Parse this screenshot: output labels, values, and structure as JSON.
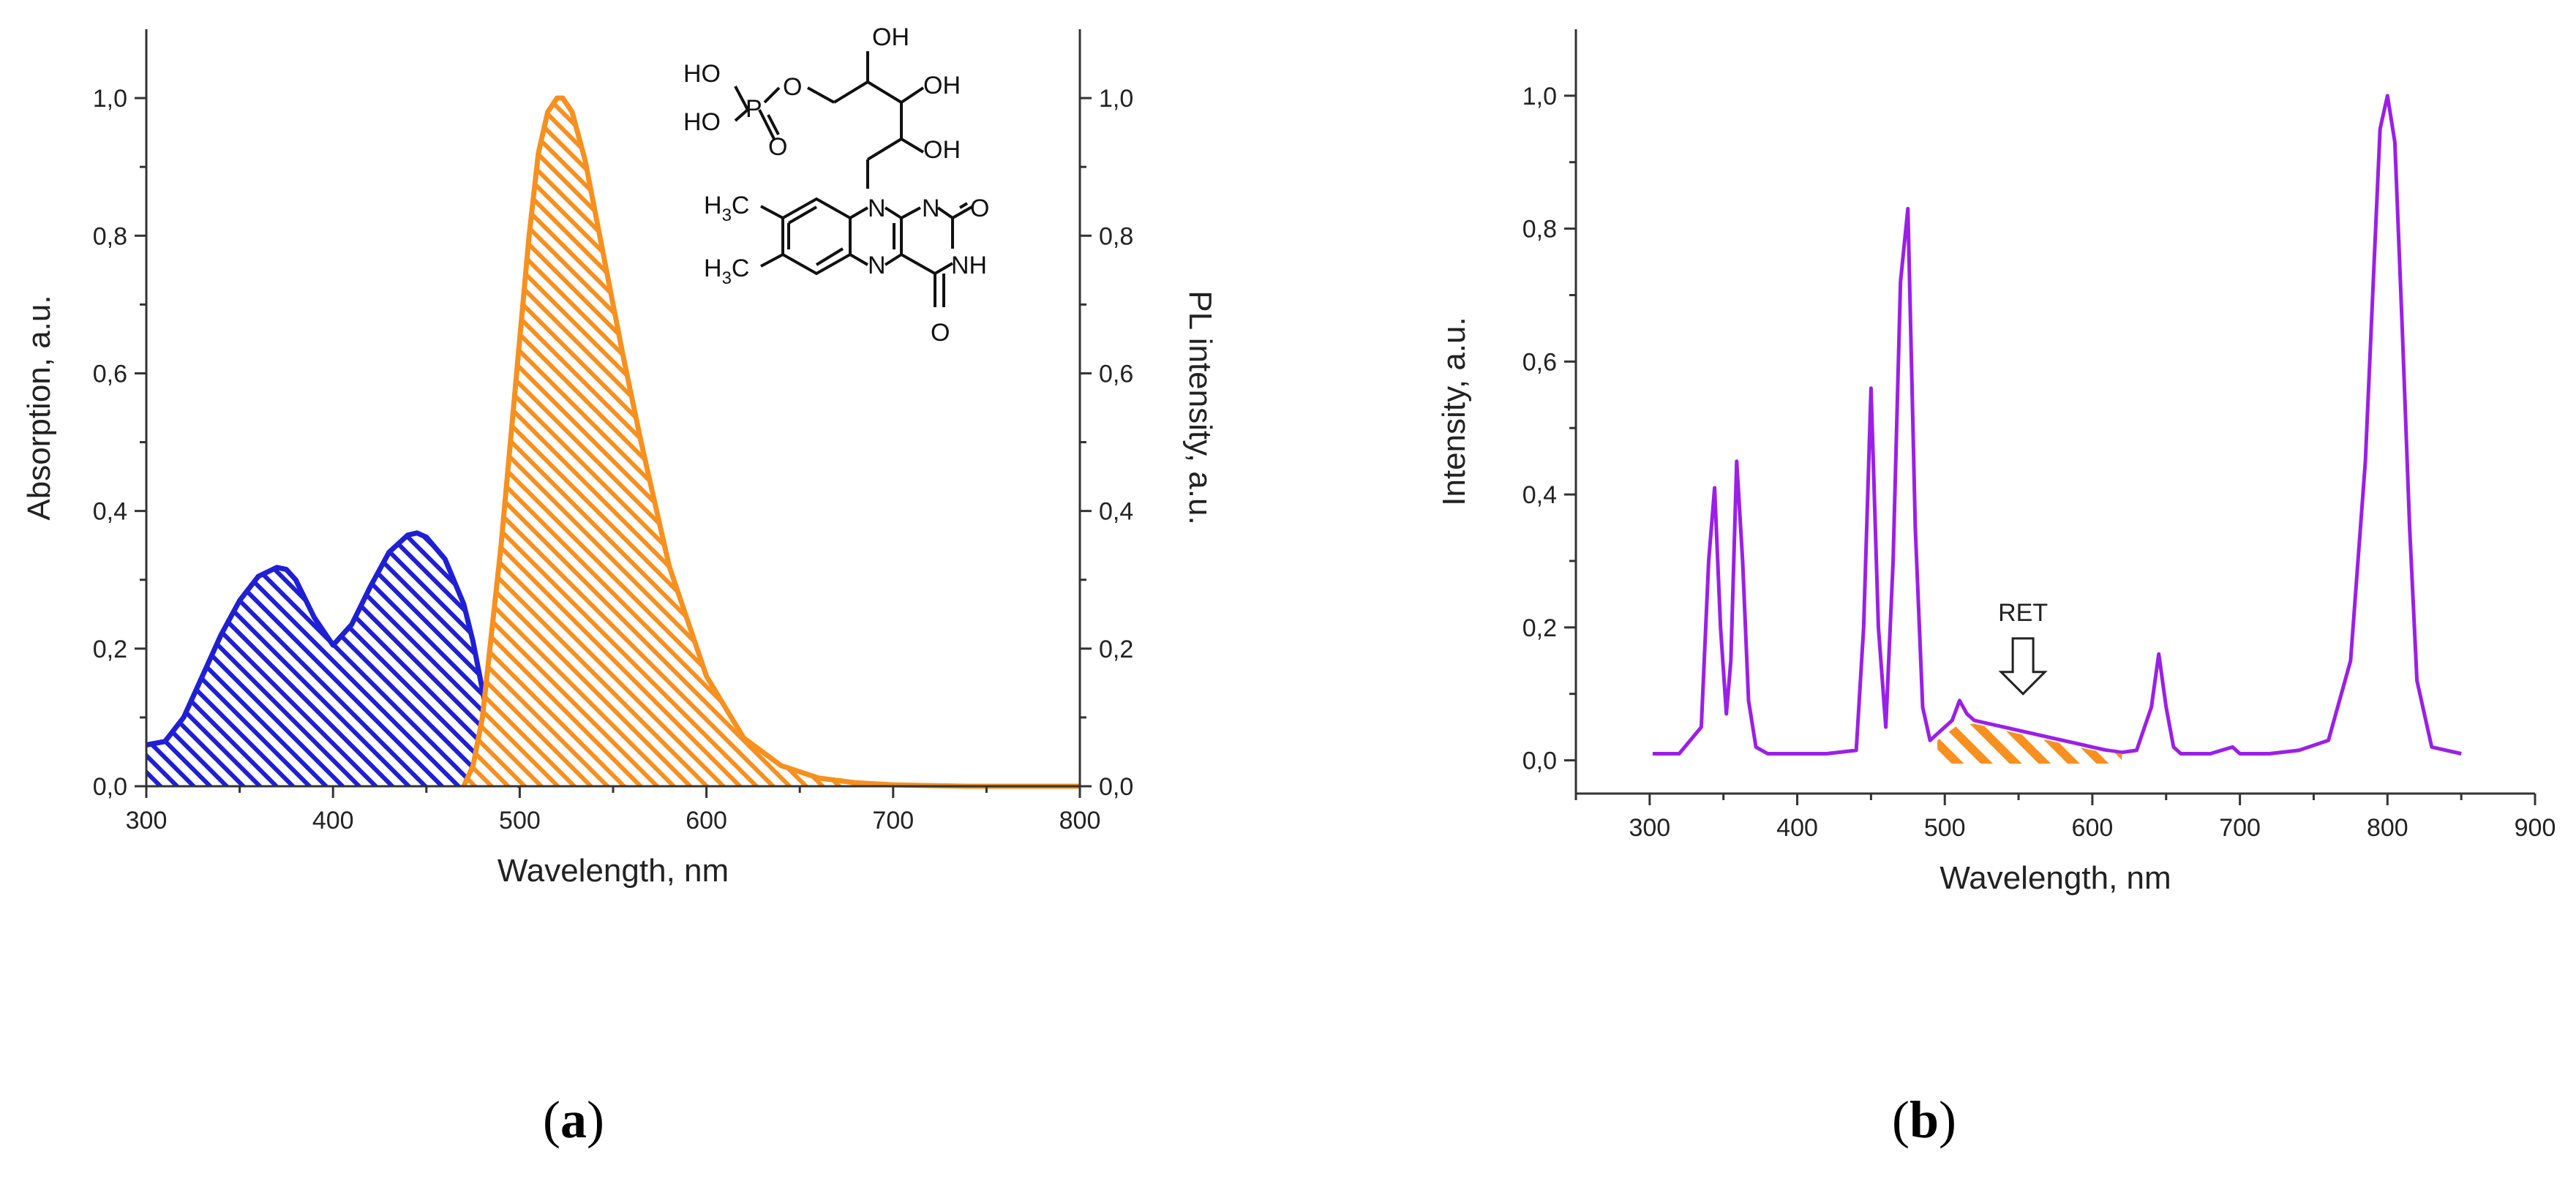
{
  "figure": {
    "panel_a_label": "a",
    "panel_b_label": "b"
  },
  "molecule": {
    "atoms": {
      "oh_top": "OH",
      "oh_mid": "OH",
      "oh_low": "OH",
      "ho_top": "HO",
      "ho_bot": "HO",
      "p": "P",
      "o_link": "O",
      "o_dbl_p": "O",
      "n_ring_top": "N",
      "n_ring_right": "N",
      "n_bottom": "N",
      "nh": "NH",
      "o_right": "O",
      "o_bottom": "O",
      "ch3_a": "H",
      "ch3_a_sub": "3",
      "ch3_a_c": "C",
      "ch3_b": "H",
      "ch3_b_sub": "3",
      "ch3_b_c": "C"
    }
  },
  "chart_data": [
    {
      "id": "a",
      "type": "area",
      "xlabel": "Wavelength, nm",
      "ylabel": "Absorption, a.u.",
      "y2label": "PL intensity, a.u.",
      "xlim": [
        300,
        800
      ],
      "ylim": [
        0,
        1.1
      ],
      "y2lim": [
        0,
        1.1
      ],
      "xticks": [
        300,
        400,
        500,
        600,
        700,
        800
      ],
      "yticks": [
        "0,0",
        "0,2",
        "0,4",
        "0,6",
        "0,8",
        "1,0"
      ],
      "ytick_values": [
        0,
        0.2,
        0.4,
        0.6,
        0.8,
        1.0
      ],
      "grid": false,
      "series": [
        {
          "color": "#1f1fd6",
          "hatch": "diagonal",
          "axis": "left",
          "x": [
            300,
            310,
            320,
            330,
            340,
            350,
            360,
            370,
            375,
            380,
            390,
            400,
            410,
            420,
            430,
            440,
            445,
            450,
            460,
            470,
            475,
            480,
            485,
            490,
            500
          ],
          "y": [
            0.06,
            0.065,
            0.1,
            0.16,
            0.22,
            0.27,
            0.305,
            0.318,
            0.315,
            0.3,
            0.245,
            0.205,
            0.235,
            0.29,
            0.34,
            0.365,
            0.368,
            0.362,
            0.33,
            0.265,
            0.21,
            0.14,
            0.07,
            0.025,
            0.0
          ]
        },
        {
          "color": "#f7901e",
          "hatch": "diagonal",
          "axis": "right",
          "x": [
            470,
            475,
            480,
            490,
            500,
            505,
            510,
            515,
            520,
            523,
            528,
            535,
            545,
            555,
            565,
            580,
            600,
            620,
            640,
            660,
            680,
            700,
            720,
            740,
            760,
            800
          ],
          "y": [
            0.0,
            0.03,
            0.1,
            0.35,
            0.65,
            0.8,
            0.92,
            0.98,
            1.0,
            1.0,
            0.98,
            0.91,
            0.77,
            0.63,
            0.5,
            0.32,
            0.16,
            0.07,
            0.03,
            0.012,
            0.005,
            0.002,
            0.001,
            0.0,
            0.0,
            0.0
          ]
        }
      ]
    },
    {
      "id": "b",
      "type": "line",
      "xlabel": "Wavelength, nm",
      "ylabel": "Intensity, a.u.",
      "xlim": [
        250,
        900
      ],
      "ylim": [
        -0.05,
        1.1
      ],
      "xticks": [
        300,
        400,
        500,
        600,
        700,
        800,
        900
      ],
      "yticks": [
        "0,0",
        "0,2",
        "0,4",
        "0,6",
        "0,8",
        "1,0"
      ],
      "ytick_values": [
        0,
        0.2,
        0.4,
        0.6,
        0.8,
        1.0
      ],
      "grid": false,
      "annotation": {
        "text": "RET",
        "x": 553,
        "y": 0.19,
        "arrow_to_y": 0.1
      },
      "series": [
        {
          "color": "#9b1fe8",
          "x": [
            302,
            320,
            335,
            340,
            344,
            348,
            352,
            355,
            359,
            363,
            367,
            372,
            380,
            400,
            420,
            440,
            445,
            450,
            455,
            460,
            465,
            470,
            475,
            480,
            485,
            490,
            495,
            500,
            505,
            510,
            515,
            520,
            530,
            540,
            550,
            560,
            570,
            580,
            590,
            600,
            610,
            620,
            630,
            640,
            645,
            650,
            655,
            660,
            680,
            695,
            700,
            720,
            740,
            760,
            775,
            785,
            790,
            795,
            800,
            805,
            810,
            815,
            820,
            830,
            850
          ],
          "y": [
            0.01,
            0.01,
            0.05,
            0.3,
            0.41,
            0.2,
            0.07,
            0.15,
            0.45,
            0.3,
            0.09,
            0.02,
            0.01,
            0.01,
            0.01,
            0.015,
            0.2,
            0.56,
            0.2,
            0.05,
            0.3,
            0.72,
            0.83,
            0.35,
            0.08,
            0.03,
            0.04,
            0.05,
            0.06,
            0.09,
            0.07,
            0.06,
            0.055,
            0.05,
            0.045,
            0.04,
            0.035,
            0.03,
            0.025,
            0.02,
            0.015,
            0.012,
            0.015,
            0.08,
            0.16,
            0.08,
            0.02,
            0.01,
            0.01,
            0.02,
            0.01,
            0.01,
            0.015,
            0.03,
            0.15,
            0.45,
            0.7,
            0.95,
            1.0,
            0.93,
            0.65,
            0.35,
            0.12,
            0.02,
            0.01
          ]
        },
        {
          "color": "#f7901e",
          "hatch": "diagonal",
          "x": [
            495,
            510,
            520,
            540,
            560,
            580,
            600,
            620
          ],
          "y": [
            0.03,
            0.055,
            0.055,
            0.045,
            0.035,
            0.025,
            0.015,
            0.01
          ]
        }
      ]
    }
  ]
}
